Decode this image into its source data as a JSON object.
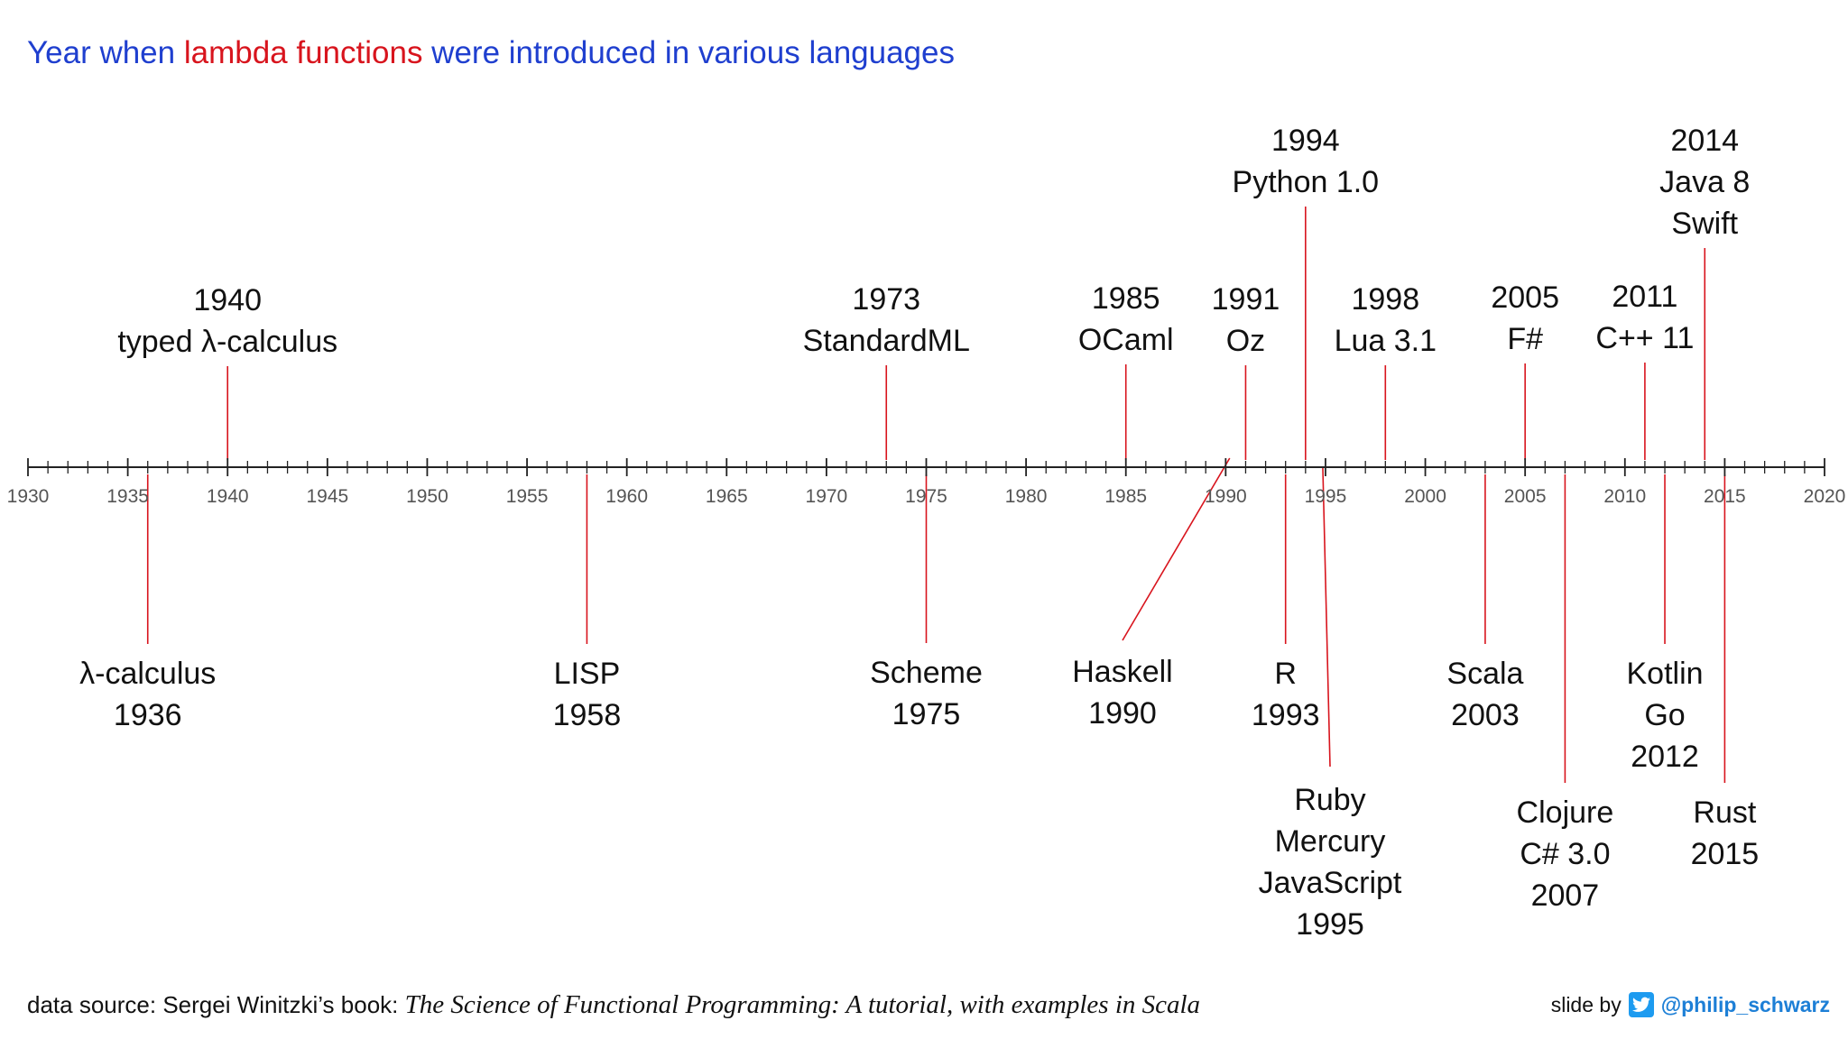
{
  "title": {
    "part1": "Year when ",
    "part2": "lambda functions",
    "part3": " were introduced in various languages"
  },
  "chart_data": {
    "type": "timeline",
    "axis": {
      "min": 1930,
      "max": 2020,
      "major_step": 5,
      "minor_step": 1
    },
    "tick_labels": [
      "1930",
      "1935",
      "1940",
      "1945",
      "1950",
      "1955",
      "1960",
      "1965",
      "1970",
      "1975",
      "1980",
      "1985",
      "1990",
      "1995",
      "2000",
      "2005",
      "2010",
      "2015",
      "2020"
    ],
    "events": [
      {
        "year": 1936,
        "side": "below",
        "lines": [
          "λ-calculus",
          "1936"
        ]
      },
      {
        "year": 1940,
        "side": "above",
        "lines": [
          "1940",
          "typed λ-calculus"
        ]
      },
      {
        "year": 1958,
        "side": "below",
        "lines": [
          "LISP",
          "1958"
        ]
      },
      {
        "year": 1973,
        "side": "above",
        "lines": [
          "1973",
          "StandardML"
        ]
      },
      {
        "year": 1975,
        "side": "below",
        "lines": [
          "Scheme",
          "1975"
        ]
      },
      {
        "year": 1985,
        "side": "above",
        "lines": [
          "1985",
          "OCaml"
        ]
      },
      {
        "year": 1990,
        "side": "below",
        "lines": [
          "Haskell",
          "1990"
        ]
      },
      {
        "year": 1991,
        "side": "above",
        "lines": [
          "1991",
          "Oz"
        ]
      },
      {
        "year": 1993,
        "side": "below",
        "lines": [
          "R",
          "1993"
        ]
      },
      {
        "year": 1994,
        "side": "above",
        "lines": [
          "1994",
          "Python 1.0"
        ]
      },
      {
        "year": 1995,
        "side": "below",
        "lines": [
          "Ruby",
          "Mercury",
          "JavaScript",
          "1995"
        ]
      },
      {
        "year": 1998,
        "side": "above",
        "lines": [
          "1998",
          "Lua 3.1"
        ]
      },
      {
        "year": 2003,
        "side": "below",
        "lines": [
          "Scala",
          "2003"
        ]
      },
      {
        "year": 2005,
        "side": "above",
        "lines": [
          "2005",
          "F#"
        ]
      },
      {
        "year": 2007,
        "side": "below",
        "lines": [
          "Clojure",
          "C# 3.0",
          "2007"
        ]
      },
      {
        "year": 2011,
        "side": "above",
        "lines": [
          "2011",
          "C++ 11"
        ]
      },
      {
        "year": 2012,
        "side": "below",
        "lines": [
          "Kotlin",
          "Go",
          "2012"
        ]
      },
      {
        "year": 2014,
        "side": "above",
        "lines": [
          "2014",
          "Java 8",
          "Swift"
        ]
      },
      {
        "year": 2015,
        "side": "below",
        "lines": [
          "Rust",
          "2015"
        ]
      }
    ],
    "colors": {
      "axis": "#222222",
      "connector": "#d8141d"
    }
  },
  "footer": {
    "source_prefix": "data source: Sergei Winitzki’s book: ",
    "book_title": "The Science of Functional Programming: A tutorial, with examples in Scala",
    "credit_prefix": "slide by",
    "credit_icon": "twitter-bird-icon",
    "credit_handle": "@philip_schwarz"
  }
}
